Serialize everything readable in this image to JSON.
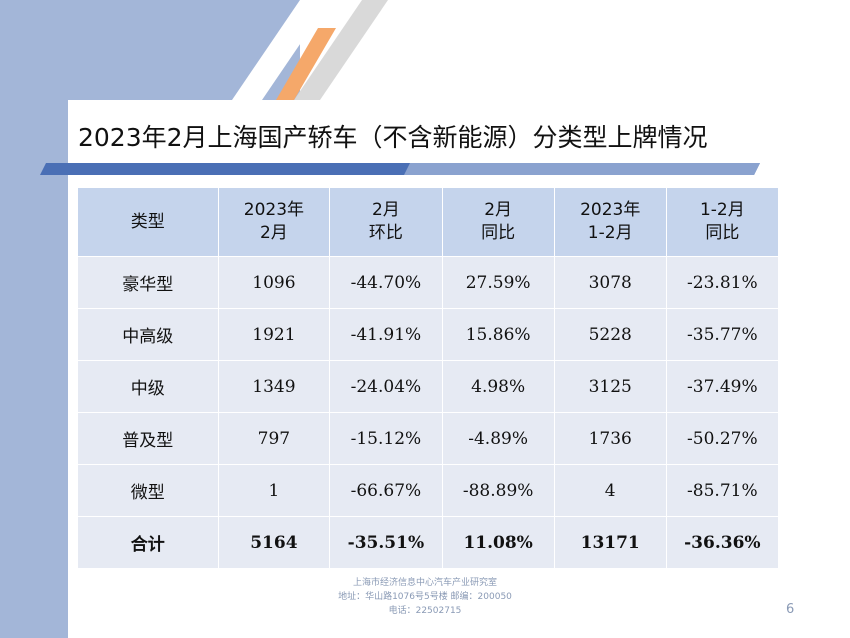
{
  "title": "2023年2月上海国产轿车（不含新能源）分类型上牌情况",
  "table": {
    "headers": [
      [
        "类型"
      ],
      [
        "2023年",
        "2月"
      ],
      [
        "2月",
        "环比"
      ],
      [
        "2月",
        "同比"
      ],
      [
        "2023年",
        "1-2月"
      ],
      [
        "1-2月",
        "同比"
      ]
    ],
    "rows": [
      [
        "豪华型",
        "1096",
        "-44.70%",
        "27.59%",
        "3078",
        "-23.81%"
      ],
      [
        "中高级",
        "1921",
        "-41.91%",
        "15.86%",
        "5228",
        "-35.77%"
      ],
      [
        "中级",
        "1349",
        "-24.04%",
        "4.98%",
        "3125",
        "-37.49%"
      ],
      [
        "普及型",
        "797",
        "-15.12%",
        "-4.89%",
        "1736",
        "-50.27%"
      ],
      [
        "微型",
        "1",
        "-66.67%",
        "-88.89%",
        "4",
        "-85.71%"
      ]
    ],
    "total": [
      "合计",
      "5164",
      "-35.51%",
      "11.08%",
      "13171",
      "-36.36%"
    ]
  },
  "footer": {
    "org": "上海市经济信息中心汽车产业研究室",
    "address": "地址：华山路1076号5号楼    邮编：200050",
    "phone": "电话：22502715"
  },
  "page_number": "6",
  "colors": {
    "side_band": "#a3b6d8",
    "header_fill": "#c5d4ec",
    "cell_fill": "#e6eaf3",
    "accent_orange": "#f5a86a",
    "accent_gray": "#d9d9d9",
    "rule_blue": "#4a6fb5"
  }
}
